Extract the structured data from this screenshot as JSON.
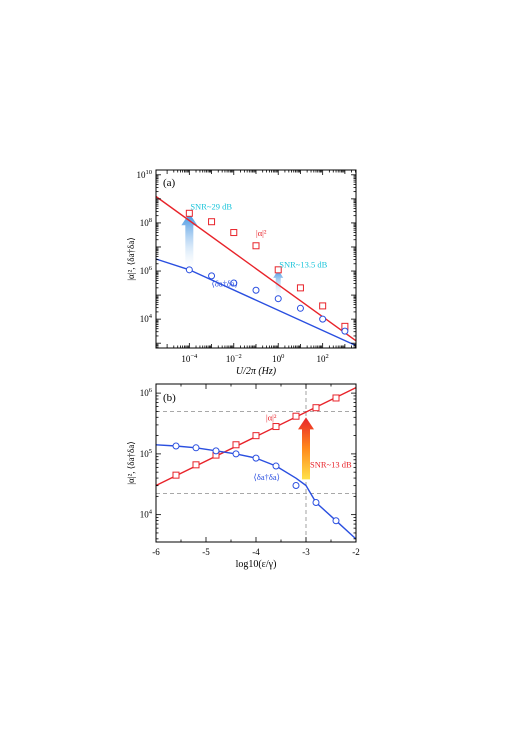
{
  "colors": {
    "red": "#e8232a",
    "blue": "#2a4fe0",
    "cyan": "#19c4da",
    "grid": "#8c8c8c"
  },
  "chart_data": [
    {
      "type": "line",
      "panel_label": "(a)",
      "xlabel": "U/2π (Hz)",
      "ylabel": "|α|², ⟨δa†δa⟩",
      "xscale": "log",
      "yscale": "log",
      "xlim_log10": [
        -5.5,
        3.5
      ],
      "ylim_log10": [
        2.8,
        10.2
      ],
      "xticks_log10": [
        -4,
        -2,
        0,
        2
      ],
      "yticks_log10": [
        4,
        6,
        8,
        10
      ],
      "series": [
        {
          "name": "|α|²",
          "color": "red",
          "marker": "square",
          "x_log10": [
            -4.0,
            -3.0,
            -2.0,
            -1.0,
            0.0,
            1.0,
            2.0,
            3.0
          ],
          "y_log10": [
            8.4,
            8.05,
            7.6,
            7.05,
            6.05,
            5.3,
            4.55,
            3.7
          ]
        },
        {
          "name": "⟨δa†δa⟩",
          "color": "blue",
          "marker": "circle",
          "x_log10": [
            -4.0,
            -3.0,
            -2.0,
            -1.0,
            0.0,
            1.0,
            2.0,
            3.0
          ],
          "y_log10": [
            6.05,
            5.8,
            5.5,
            5.2,
            4.85,
            4.45,
            4.0,
            3.5
          ]
        }
      ],
      "curves": [
        {
          "color": "red",
          "x_log10": [
            -5.5,
            3.5
          ],
          "y_log10": [
            9.1,
            3.1
          ]
        },
        {
          "color": "blue",
          "x_log10": [
            -5.5,
            -4.0,
            3.5
          ],
          "y_log10": [
            6.5,
            6.05,
            2.9
          ]
        }
      ],
      "annotations": [
        {
          "text": "SNR~29 dB",
          "color": "cyan",
          "x_log10": -4.0,
          "y_log10": 8.55
        },
        {
          "text": "SNR~13.5 dB",
          "color": "cyan",
          "x_log10": 0.0,
          "y_log10": 6.15
        },
        {
          "text": "|α|²",
          "color": "red",
          "x_log10": -1.0,
          "y_log10": 7.45
        },
        {
          "text": "⟨δa†δa⟩",
          "color": "blue",
          "x_log10": -3.0,
          "y_log10": 5.35
        }
      ],
      "arrows": [
        {
          "x_log10": -4.0,
          "from_y_log10": 6.1,
          "to_y_log10": 8.4
        },
        {
          "x_log10": 0.0,
          "from_y_log10": 4.95,
          "to_y_log10": 6.05
        }
      ]
    },
    {
      "type": "line",
      "panel_label": "(b)",
      "xlabel": "log10(ε/γ)",
      "ylabel": "|α|², ⟨δa†δa⟩",
      "xscale": "linear",
      "yscale": "log",
      "xlim": [
        -6,
        -2
      ],
      "ylim_log10": [
        3.55,
        6.15
      ],
      "xticks": [
        -6,
        -5,
        -4,
        -3,
        -2
      ],
      "xtick_labels": [
        "-6",
        "-5",
        "-4",
        "-3",
        "-2"
      ],
      "yticks_log10": [
        4,
        5,
        6
      ],
      "series": [
        {
          "name": "|α|²",
          "color": "red",
          "marker": "square",
          "x": [
            -5.6,
            -5.2,
            -4.8,
            -4.4,
            -4.0,
            -3.6,
            -3.2,
            -2.8,
            -2.4
          ],
          "y_log10": [
            4.65,
            4.82,
            4.98,
            5.15,
            5.3,
            5.45,
            5.62,
            5.76,
            5.92
          ]
        },
        {
          "name": "⟨δa†δa⟩",
          "color": "blue",
          "marker": "circle",
          "x": [
            -5.6,
            -5.2,
            -4.8,
            -4.4,
            -4.0,
            -3.6,
            -3.2,
            -2.8,
            -2.4
          ],
          "y_log10": [
            5.13,
            5.1,
            5.05,
            5.0,
            4.93,
            4.8,
            4.48,
            4.2,
            3.9
          ]
        }
      ],
      "curves": [
        {
          "color": "red",
          "x": [
            -6,
            -2
          ],
          "y_log10": [
            4.48,
            6.09
          ]
        },
        {
          "color": "blue",
          "x": [
            -6,
            -5.6,
            -5.2,
            -4.8,
            -4.4,
            -4.0,
            -3.6,
            -3.2,
            -3.0,
            -2.8,
            -2.4,
            -2.0
          ],
          "y_log10": [
            5.15,
            5.13,
            5.1,
            5.05,
            5.0,
            4.93,
            4.8,
            4.6,
            4.48,
            4.2,
            3.9,
            3.6
          ]
        }
      ],
      "reference_lines": {
        "horizontal_y_log10": [
          5.7,
          4.35
        ],
        "vertical_x": [
          -3.0
        ]
      },
      "annotations": [
        {
          "text": "SNR~13 dB",
          "color": "red",
          "x": -2.92,
          "y_log10": 4.78
        },
        {
          "text": "|α|²",
          "color": "red",
          "x": -3.8,
          "y_log10": 5.55
        },
        {
          "text": "⟨δa†δa⟩",
          "color": "blue",
          "x": -4.05,
          "y_log10": 4.57
        }
      ],
      "arrows": [
        {
          "x": -3.0,
          "from_y_log10": 4.58,
          "to_y_log10": 5.6
        }
      ]
    }
  ]
}
